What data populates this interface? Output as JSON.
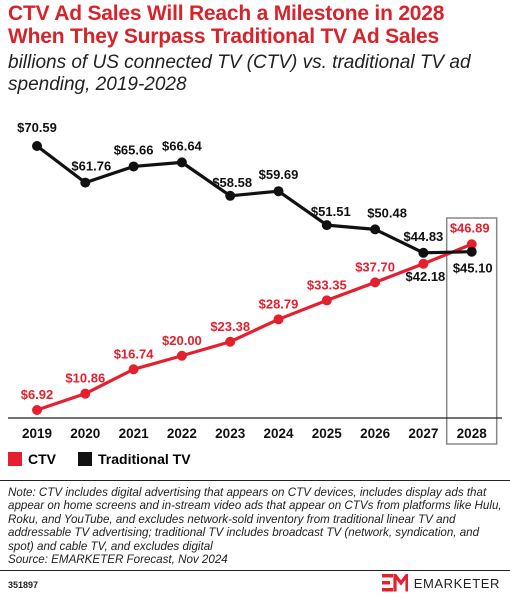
{
  "header": {
    "title": "CTV Ad Sales Will Reach a Milestone in 2028 When They Surpass Traditional TV Ad Sales",
    "subtitle": "billions of US connected TV (CTV) vs. traditional TV ad spending, 2019-2028"
  },
  "chart_data": {
    "type": "line",
    "title": "CTV Ad Sales Will Reach a Milestone in 2028 When They Surpass Traditional TV Ad Sales",
    "subtitle": "billions of US connected TV (CTV) vs. traditional TV ad spending, 2019-2028",
    "categories": [
      "2019",
      "2020",
      "2021",
      "2022",
      "2023",
      "2024",
      "2025",
      "2026",
      "2027",
      "2028"
    ],
    "series": [
      {
        "name": "CTV",
        "color": "#e5202e",
        "values": [
          6.92,
          10.86,
          16.74,
          20.0,
          23.38,
          28.79,
          33.35,
          37.7,
          42.18,
          46.89
        ],
        "labels": [
          "$6.92",
          "$10.86",
          "$16.74",
          "$20.00",
          "$23.38",
          "$28.79",
          "$33.35",
          "$37.70",
          "$42.18",
          "$46.89"
        ]
      },
      {
        "name": "Traditional TV",
        "color": "#111111",
        "values": [
          70.59,
          61.76,
          65.66,
          66.64,
          58.58,
          59.69,
          51.51,
          50.48,
          44.83,
          45.1
        ],
        "labels": [
          "$70.59",
          "$61.76",
          "$65.66",
          "$66.64",
          "$58.58",
          "$59.69",
          "$51.51",
          "$50.48",
          "$44.83",
          "$45.10"
        ]
      }
    ],
    "highlight_category": "2028",
    "ylim": [
      5,
      72
    ],
    "grid": false,
    "legend_position": "bottom-left"
  },
  "legend": {
    "items": [
      {
        "label": "CTV",
        "color": "#e5202e"
      },
      {
        "label": "Traditional TV",
        "color": "#111111"
      }
    ]
  },
  "note": {
    "text": "Note: CTV includes digital advertising that appears on CTV devices, includes display ads that appear on home screens and in-stream video ads that appear on CTVs from platforms like Hulu, Roku, and YouTube, and excludes network-sold inventory from traditional linear TV and addressable TV advertising; traditional TV includes broadcast TV (network, syndication, and spot) and cable TV, and excludes digital",
    "source": "Source: EMARKETER Forecast, Nov 2024"
  },
  "footer": {
    "chart_id": "351897",
    "brand": "EMARKETER",
    "brand_color": "#e5202e"
  }
}
